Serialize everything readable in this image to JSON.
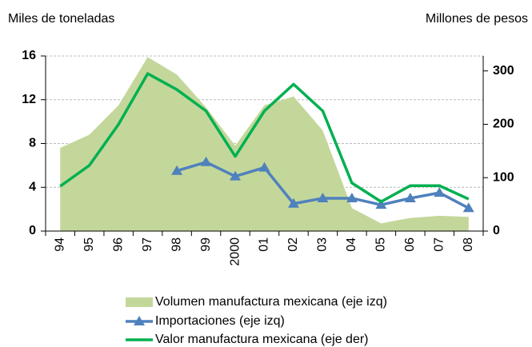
{
  "chart_data": {
    "type": "combo",
    "y_axis_label": "Miles de toneladas",
    "y2_axis_label": "Millones de pesos",
    "categories": [
      "94",
      "95",
      "96",
      "97",
      "98",
      "99",
      "2000",
      "01",
      "02",
      "03",
      "04",
      "05",
      "06",
      "07",
      "08"
    ],
    "ylim": [
      0,
      16
    ],
    "yticks": [
      0,
      4,
      8,
      12,
      16
    ],
    "y2lim": [
      0,
      328
    ],
    "y2ticks": [
      0,
      100,
      200,
      300
    ],
    "grid": true,
    "series": [
      {
        "name": "Volumen manufactura mexicana (eje izq)",
        "type": "area",
        "color": "#c4d79b",
        "values": [
          7.6,
          8.8,
          11.5,
          15.9,
          14.3,
          11.3,
          7.8,
          11.5,
          12.3,
          9.2,
          2.1,
          0.7,
          1.2,
          1.4,
          1.3
        ]
      },
      {
        "name": "Importaciones (eje izq)",
        "type": "line",
        "marker": "triangle",
        "color": "#4f81bd",
        "values": [
          null,
          null,
          null,
          null,
          5.5,
          6.3,
          5.0,
          5.8,
          2.5,
          3.0,
          3.0,
          2.4,
          3.0,
          3.5,
          2.1
        ]
      },
      {
        "name": "Valor manufactura mexicana (eje der)",
        "type": "line",
        "axis": "y2",
        "color": "#00b050",
        "values": [
          84,
          123,
          200,
          295,
          265,
          225,
          140,
          225,
          275,
          225,
          90,
          55,
          85,
          85,
          60
        ]
      }
    ]
  }
}
